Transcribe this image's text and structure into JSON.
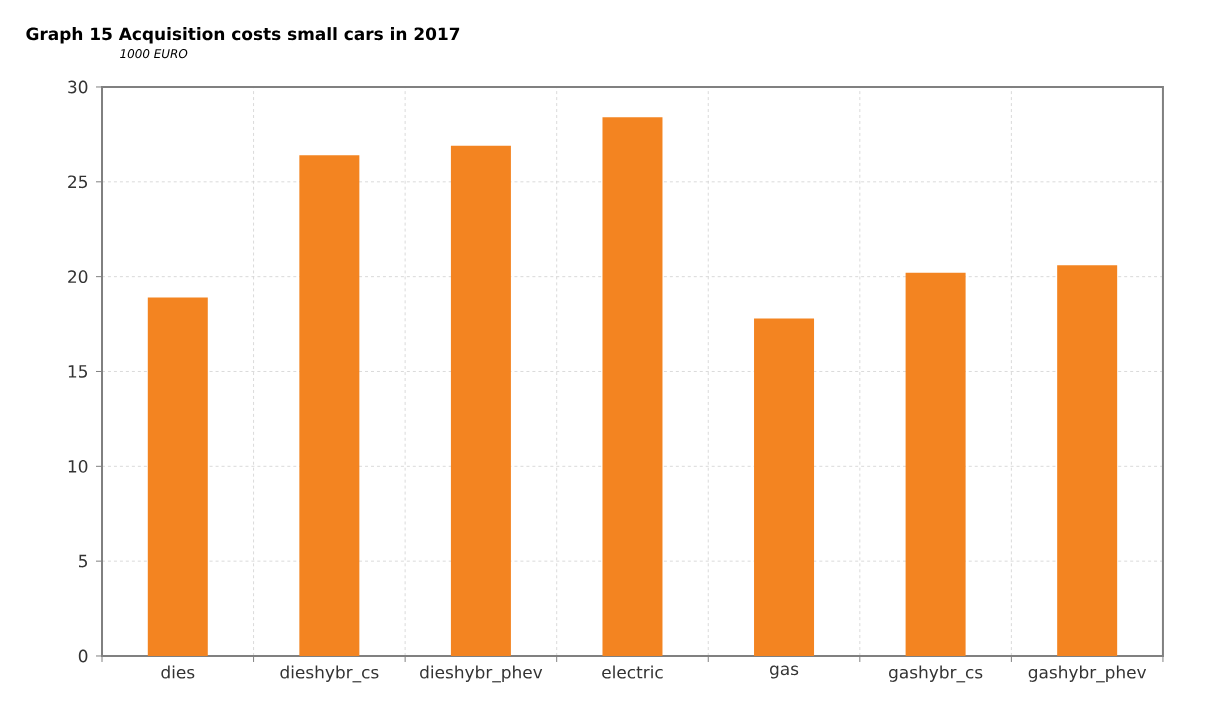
{
  "chart_data": {
    "type": "bar",
    "title": "Graph 15   Acquisition costs small cars in 2017",
    "subtitle": "1000 EURO",
    "categories": [
      "dies",
      "dieshybr_cs",
      "dieshybr_phev",
      "electric",
      "gas",
      "gashybr_cs",
      "gashybr_phev"
    ],
    "values": [
      18.9,
      26.4,
      26.9,
      28.4,
      17.8,
      20.2,
      20.6
    ],
    "color": "#f38421",
    "ylim": [
      0,
      30
    ],
    "yticks": [
      0,
      5,
      10,
      15,
      20,
      25,
      30
    ],
    "grid": true
  }
}
